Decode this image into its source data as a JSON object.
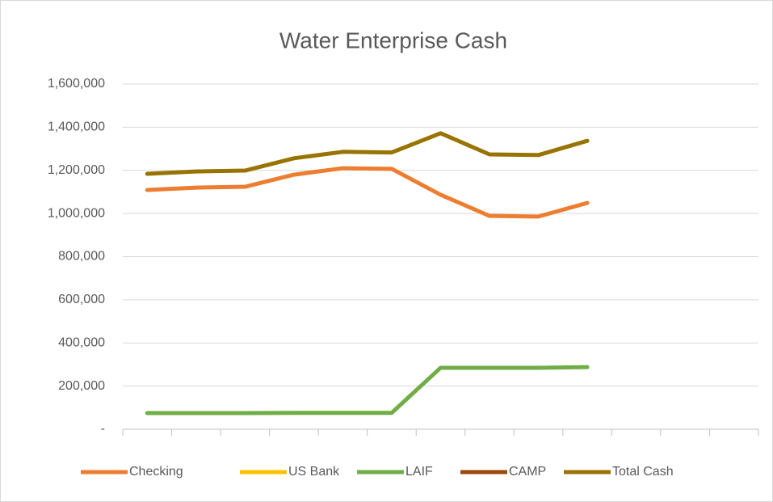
{
  "chart_data": {
    "type": "line",
    "title": "Water Enterprise Cash",
    "categories": [
      null,
      null,
      null,
      null,
      null,
      null,
      null,
      null,
      null,
      null,
      null,
      null,
      null
    ],
    "series": [
      {
        "name": "Checking",
        "color": "#ed7d31",
        "values": [
          1109000,
          1120000,
          1124000,
          1180000,
          1210000,
          1207000,
          1087000,
          989000,
          986000,
          1049000,
          null,
          null,
          null
        ]
      },
      {
        "name": "US Bank",
        "color": "#ffc000",
        "values": [
          null,
          null,
          null,
          null,
          null,
          null,
          null,
          null,
          null,
          null,
          null,
          null,
          null
        ]
      },
      {
        "name": "LAIF",
        "color": "#70ad47",
        "values": [
          75000,
          75000,
          75000,
          76000,
          76000,
          76000,
          285000,
          285000,
          285000,
          288000,
          null,
          null,
          null
        ]
      },
      {
        "name": "CAMP",
        "color": "#9e480e",
        "values": [
          null,
          null,
          null,
          null,
          null,
          null,
          null,
          null,
          null,
          null,
          null,
          null,
          null
        ]
      },
      {
        "name": "Total Cash",
        "color": "#997300",
        "values": [
          1184000,
          1195000,
          1199000,
          1256000,
          1286000,
          1283000,
          1372000,
          1274000,
          1271000,
          1337000,
          null,
          null,
          null
        ]
      }
    ],
    "ylim": [
      0,
      1600000
    ],
    "yticks": [
      {
        "value": 0,
        "label": "-"
      },
      {
        "value": 200000,
        "label": "200,000"
      },
      {
        "value": 400000,
        "label": "400,000"
      },
      {
        "value": 600000,
        "label": "600,000"
      },
      {
        "value": 800000,
        "label": "800,000"
      },
      {
        "value": 1000000,
        "label": "1,000,000"
      },
      {
        "value": 1200000,
        "label": "1,200,000"
      },
      {
        "value": 1400000,
        "label": "1,400,000"
      },
      {
        "value": 1600000,
        "label": "1,600,000"
      }
    ],
    "grid": true,
    "legend": "bottom"
  }
}
